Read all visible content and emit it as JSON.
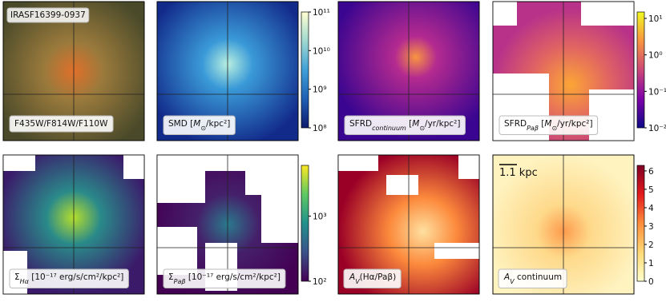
{
  "panels": [
    {
      "title": "IRASF16399-0937",
      "label": [
        {
          "text": "F435W/F814W/F110W"
        }
      ]
    },
    {
      "label": [
        {
          "text": "SMD ["
        },
        {
          "text": "M",
          "italic": true
        },
        {
          "text": "⊙",
          "sub": true
        },
        {
          "text": "/kpc²]"
        }
      ],
      "colorbar": {
        "scale": "log",
        "lim": [
          100000000,
          100000000000
        ],
        "colors": [
          "#0d1b6e",
          "#1f5fb4",
          "#3fa0d8",
          "#9fd9d0",
          "#ffffd0"
        ],
        "ticks": [
          {
            "value": 100000000,
            "label": "10⁸"
          },
          {
            "value": 1000000000,
            "label": "10⁹"
          },
          {
            "value": 10000000000,
            "label": "10¹⁰"
          },
          {
            "value": 100000000000,
            "label": "10¹¹"
          }
        ]
      }
    },
    {
      "label": [
        {
          "text": "SFRD"
        },
        {
          "text": "continuum",
          "sub": true,
          "italic": true
        },
        {
          "text": " ["
        },
        {
          "text": "M",
          "italic": true
        },
        {
          "text": "⊙",
          "sub": true
        },
        {
          "text": "/yr/kpc²]"
        }
      ]
    },
    {
      "label": [
        {
          "text": "SFRD"
        },
        {
          "text": "Paβ",
          "sub": true,
          "italic": true
        },
        {
          "text": " ["
        },
        {
          "text": "M",
          "italic": true
        },
        {
          "text": "⊙",
          "sub": true
        },
        {
          "text": "/yr/kpc²]"
        }
      ],
      "colorbar": {
        "scale": "log",
        "lim": [
          0.01,
          15
        ],
        "colors": [
          "#0d0887",
          "#7e03a8",
          "#cc4778",
          "#f89540",
          "#f0f921"
        ],
        "ticks": [
          {
            "value": 0.01,
            "label": "10⁻²"
          },
          {
            "value": 0.1,
            "label": "10⁻¹"
          },
          {
            "value": 1,
            "label": "10⁰"
          },
          {
            "value": 10,
            "label": "10¹"
          }
        ]
      }
    },
    {
      "label": [
        {
          "text": "Σ"
        },
        {
          "text": "Hα",
          "sub": true,
          "italic": true
        },
        {
          "text": " [10⁻¹⁷ erg/s/cm²/kpc²]"
        }
      ]
    },
    {
      "label": [
        {
          "text": "Σ"
        },
        {
          "text": "Paβ",
          "sub": true,
          "italic": true
        },
        {
          "text": " [10⁻¹⁷ erg/s/cm²/kpc²]"
        }
      ],
      "colorbar": {
        "scale": "log",
        "lim": [
          100,
          6000
        ],
        "colors": [
          "#440154",
          "#3b528b",
          "#21918c",
          "#5ec962",
          "#fde725"
        ],
        "ticks": [
          {
            "value": 100,
            "label": "10²"
          },
          {
            "value": 1000,
            "label": "10³"
          }
        ]
      }
    },
    {
      "label": [
        {
          "text": "A",
          "italic": true
        },
        {
          "text": "V",
          "sub": true,
          "italic": true
        },
        {
          "text": "(Hα/Paβ)"
        }
      ]
    },
    {
      "scalebar": "1.1 kpc",
      "label": [
        {
          "text": "A",
          "italic": true
        },
        {
          "text": "V",
          "sub": true,
          "italic": true
        },
        {
          "text": " continuum"
        }
      ],
      "colorbar": {
        "scale": "linear",
        "lim": [
          0,
          6.3
        ],
        "colors": [
          "#ffffcc",
          "#fed976",
          "#fd8d3c",
          "#e31a1c",
          "#800026"
        ],
        "ticks": [
          0,
          1,
          2,
          3,
          4,
          5,
          6
        ]
      }
    }
  ]
}
